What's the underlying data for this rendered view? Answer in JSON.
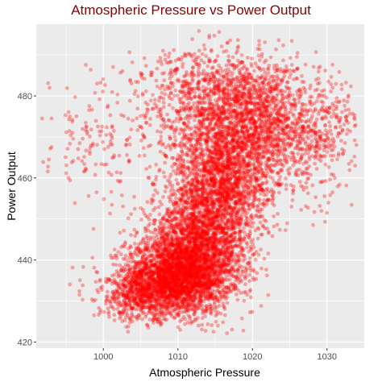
{
  "chart_data": {
    "type": "scatter",
    "title": "Atmospheric Pressure vs Power Output",
    "xlabel": "Atmospheric Pressure",
    "ylabel": "Power Output",
    "xlim": [
      991.0,
      1035.0
    ],
    "ylim": [
      418.5,
      497.5
    ],
    "x_ticks": [
      1000,
      1010,
      1020,
      1030
    ],
    "y_ticks": [
      420,
      440,
      460,
      480
    ],
    "grid": true,
    "point_color": "#ff0000",
    "panel_background": "#ebebeb",
    "title_color": "#8b0000",
    "approx_point_count": 9500,
    "series": [
      {
        "clusters": [
          {
            "x": 1010,
            "y": 436,
            "sx": 3.5,
            "sy": 4.5,
            "n": 2600
          },
          {
            "x": 1013,
            "y": 445,
            "sx": 3.5,
            "sy": 6.5,
            "n": 1900
          },
          {
            "x": 1016,
            "y": 460,
            "sx": 3.2,
            "sy": 7.0,
            "n": 1500
          },
          {
            "x": 1018,
            "y": 474,
            "sx": 4.5,
            "sy": 7.0,
            "n": 1300
          },
          {
            "x": 1025,
            "y": 472,
            "sx": 4.0,
            "sy": 8.0,
            "n": 600
          },
          {
            "x": 1005,
            "y": 431,
            "sx": 3.0,
            "sy": 3.0,
            "n": 500
          },
          {
            "x": 1015,
            "y": 482,
            "sx": 5.0,
            "sy": 5.0,
            "n": 500
          },
          {
            "x": 1000,
            "y": 470,
            "sx": 4.5,
            "sy": 8.0,
            "n": 180
          },
          {
            "x": 1030,
            "y": 470,
            "sx": 2.5,
            "sy": 6.0,
            "n": 150
          }
        ]
      }
    ]
  }
}
